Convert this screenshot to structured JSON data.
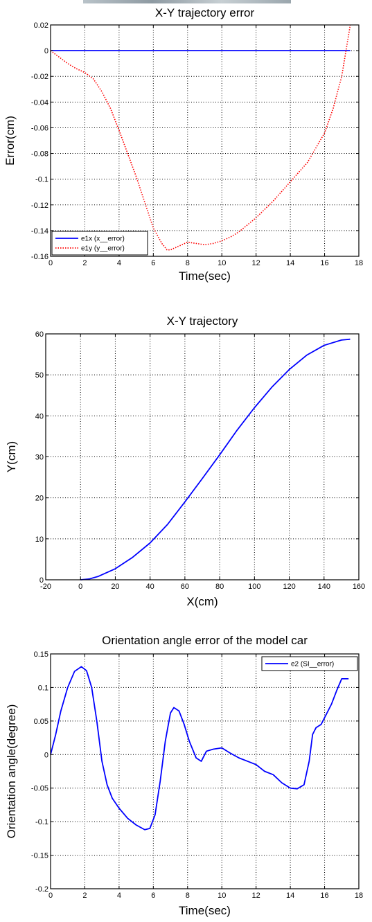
{
  "chart_data": [
    {
      "type": "line",
      "title": "X-Y trajectory error",
      "xlabel": "Time(sec)",
      "ylabel": "Error(cm)",
      "xlim": [
        0,
        18
      ],
      "ylim": [
        -0.16,
        0.02
      ],
      "xticks": [
        0,
        2,
        4,
        6,
        8,
        10,
        12,
        14,
        16,
        18
      ],
      "yticks": [
        0.02,
        0,
        -0.02,
        -0.04,
        -0.06,
        -0.08,
        -0.1,
        -0.12,
        -0.14,
        -0.16
      ],
      "grid": true,
      "legend_position": "bottom-left",
      "series": [
        {
          "name": "e1x (x__error)",
          "color": "#0000ff",
          "style": "solid",
          "x": [
            0,
            17.5
          ],
          "y": [
            0,
            0
          ]
        },
        {
          "name": "e1y (y__error)",
          "color": "#ff0000",
          "style": "dotted",
          "x": [
            0,
            0.5,
            1,
            1.5,
            2,
            2.5,
            3,
            3.5,
            4,
            4.5,
            5,
            5.5,
            6,
            6.5,
            6.8,
            7,
            7.5,
            8,
            8.5,
            9,
            9.5,
            10,
            10.5,
            11,
            12,
            13,
            14,
            15,
            16,
            16.5,
            17,
            17.5
          ],
          "y": [
            0,
            -0.005,
            -0.01,
            -0.014,
            -0.017,
            -0.022,
            -0.032,
            -0.045,
            -0.062,
            -0.08,
            -0.098,
            -0.118,
            -0.138,
            -0.15,
            -0.155,
            -0.155,
            -0.152,
            -0.149,
            -0.15,
            -0.151,
            -0.15,
            -0.148,
            -0.145,
            -0.141,
            -0.13,
            -0.117,
            -0.102,
            -0.087,
            -0.064,
            -0.045,
            -0.02,
            0.02
          ]
        }
      ]
    },
    {
      "type": "line",
      "title": "X-Y trajectory",
      "xlabel": "X(cm)",
      "ylabel": "Y(cm)",
      "xlim": [
        -20,
        160
      ],
      "ylim": [
        0,
        60
      ],
      "xticks": [
        -20,
        0,
        20,
        40,
        60,
        80,
        100,
        120,
        140,
        160
      ],
      "yticks": [
        0,
        10,
        20,
        30,
        40,
        50,
        60
      ],
      "grid": true,
      "series": [
        {
          "color": "#0000ff",
          "style": "solid",
          "x": [
            0,
            5,
            10,
            20,
            30,
            40,
            50,
            60,
            70,
            80,
            90,
            100,
            110,
            120,
            130,
            140,
            150,
            155
          ],
          "y": [
            0,
            0.2,
            0.8,
            2.7,
            5.5,
            9.0,
            13.5,
            19,
            24.7,
            30.5,
            36.5,
            42,
            47,
            51.3,
            54.8,
            57.2,
            58.5,
            58.7
          ]
        }
      ]
    },
    {
      "type": "line",
      "title": "Orientation angle error of the model car",
      "xlabel": "Time(sec)",
      "ylabel": "Orientation angle(degree)",
      "xlim": [
        0,
        18
      ],
      "ylim": [
        -0.2,
        0.15
      ],
      "xticks": [
        0,
        2,
        4,
        6,
        8,
        10,
        12,
        14,
        16,
        18
      ],
      "yticks": [
        0.15,
        0.1,
        0.05,
        0,
        -0.05,
        -0.1,
        -0.15,
        -0.2
      ],
      "grid": true,
      "legend_position": "top-right",
      "series": [
        {
          "name": "e2 (SI__error)",
          "color": "#0000ff",
          "style": "solid",
          "x": [
            0,
            0.3,
            0.6,
            1,
            1.4,
            1.8,
            2.1,
            2.4,
            2.7,
            3,
            3.3,
            3.6,
            4,
            4.5,
            5,
            5.5,
            5.8,
            6.1,
            6.4,
            6.7,
            7,
            7.2,
            7.5,
            7.8,
            8.1,
            8.5,
            8.8,
            9.1,
            9.5,
            10,
            10.5,
            11,
            11.5,
            12,
            12.5,
            13,
            13.5,
            14,
            14.4,
            14.8,
            15.1,
            15.3,
            15.5,
            15.8,
            16.1,
            16.4,
            16.7,
            17,
            17.4
          ],
          "y": [
            0,
            0.03,
            0.065,
            0.1,
            0.124,
            0.131,
            0.125,
            0.1,
            0.05,
            -0.01,
            -0.045,
            -0.065,
            -0.08,
            -0.095,
            -0.105,
            -0.112,
            -0.11,
            -0.09,
            -0.04,
            0.02,
            0.062,
            0.07,
            0.065,
            0.045,
            0.02,
            -0.005,
            -0.01,
            0.005,
            0.008,
            0.01,
            0.002,
            -0.005,
            -0.01,
            -0.015,
            -0.025,
            -0.03,
            -0.042,
            -0.05,
            -0.051,
            -0.045,
            -0.01,
            0.03,
            0.04,
            0.045,
            0.06,
            0.075,
            0.095,
            0.113,
            0.113
          ]
        }
      ]
    }
  ]
}
